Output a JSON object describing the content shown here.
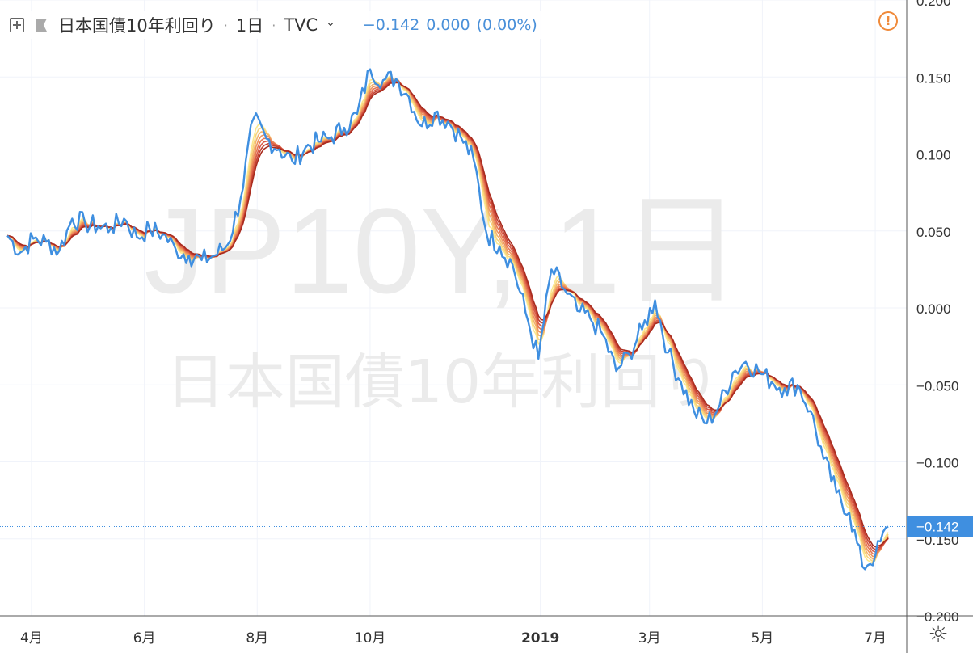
{
  "header": {
    "symbol_name": "日本国債10年利回り",
    "interval": "1日",
    "source": "TVC",
    "last": "−0.142",
    "change": "0.000",
    "change_pct": "(0.00%)"
  },
  "watermark": {
    "line1": "JP10Y, 1日",
    "line2": "日本国債10年利回り"
  },
  "icons": {
    "add": "plus-square-icon",
    "flag": "flag-icon",
    "source_menu": "chevron-down-icon",
    "alert": "alert-circle-icon",
    "settings": "gear-icon"
  },
  "colors": {
    "price_line": "#3f8fe0",
    "last_price_badge": "#3f8fe0",
    "alert": "#f08a3a",
    "ribbon": [
      "#fbe88d",
      "#f8d37b",
      "#f3b36b",
      "#ee945d",
      "#e67752",
      "#d95a45",
      "#c44131",
      "#a92c1f"
    ]
  },
  "chart_data": {
    "type": "line",
    "title": "日本国債10年利回り",
    "ylim": [
      -0.2,
      0.2
    ],
    "y_ticks": [
      "0.200",
      "0.150",
      "0.100",
      "0.050",
      "0.000",
      "−0.050",
      "−0.100",
      "−0.150",
      "−0.200"
    ],
    "x_ticks": [
      "4月",
      "6月",
      "8月",
      "10月",
      "2019",
      "3月",
      "5月",
      "7月"
    ],
    "last_price_label": "−0.142",
    "price_points": [
      [
        "2018-03-19",
        0.047
      ],
      [
        "2018-03-26",
        0.036
      ],
      [
        "2018-04-02",
        0.045
      ],
      [
        "2018-04-09",
        0.043
      ],
      [
        "2018-04-16",
        0.037
      ],
      [
        "2018-04-23",
        0.058
      ],
      [
        "2018-04-30",
        0.055
      ],
      [
        "2018-05-07",
        0.053
      ],
      [
        "2018-05-14",
        0.052
      ],
      [
        "2018-05-21",
        0.058
      ],
      [
        "2018-05-28",
        0.046
      ],
      [
        "2018-06-04",
        0.051
      ],
      [
        "2018-06-11",
        0.048
      ],
      [
        "2018-06-18",
        0.038
      ],
      [
        "2018-06-25",
        0.034
      ],
      [
        "2018-07-02",
        0.031
      ],
      [
        "2018-07-09",
        0.034
      ],
      [
        "2018-07-16",
        0.041
      ],
      [
        "2018-07-23",
        0.071
      ],
      [
        "2018-07-30",
        0.123
      ],
      [
        "2018-08-06",
        0.11
      ],
      [
        "2018-08-13",
        0.103
      ],
      [
        "2018-08-20",
        0.095
      ],
      [
        "2018-08-27",
        0.104
      ],
      [
        "2018-09-03",
        0.108
      ],
      [
        "2018-09-10",
        0.111
      ],
      [
        "2018-09-17",
        0.117
      ],
      [
        "2018-09-24",
        0.126
      ],
      [
        "2018-10-01",
        0.155
      ],
      [
        "2018-10-08",
        0.148
      ],
      [
        "2018-10-15",
        0.149
      ],
      [
        "2018-10-22",
        0.137
      ],
      [
        "2018-10-29",
        0.118
      ],
      [
        "2018-11-05",
        0.127
      ],
      [
        "2018-11-12",
        0.121
      ],
      [
        "2018-11-19",
        0.111
      ],
      [
        "2018-11-26",
        0.096
      ],
      [
        "2018-12-03",
        0.048
      ],
      [
        "2018-12-10",
        0.04
      ],
      [
        "2018-12-17",
        0.028
      ],
      [
        "2018-12-24",
        -0.003
      ],
      [
        "2018-12-31",
        -0.033
      ],
      [
        "2019-01-07",
        0.025
      ],
      [
        "2019-01-14",
        0.012
      ],
      [
        "2019-01-21",
        -0.002
      ],
      [
        "2019-01-28",
        -0.007
      ],
      [
        "2019-02-04",
        -0.018
      ],
      [
        "2019-02-11",
        -0.041
      ],
      [
        "2019-02-18",
        -0.03
      ],
      [
        "2019-02-25",
        -0.014
      ],
      [
        "2019-03-04",
        0.005
      ],
      [
        "2019-03-11",
        -0.029
      ],
      [
        "2019-03-18",
        -0.048
      ],
      [
        "2019-03-25",
        -0.067
      ],
      [
        "2019-04-01",
        -0.075
      ],
      [
        "2019-04-08",
        -0.063
      ],
      [
        "2019-04-15",
        -0.042
      ],
      [
        "2019-04-22",
        -0.035
      ],
      [
        "2019-04-29",
        -0.041
      ],
      [
        "2019-05-06",
        -0.048
      ],
      [
        "2019-05-13",
        -0.052
      ],
      [
        "2019-05-20",
        -0.05
      ],
      [
        "2019-05-27",
        -0.067
      ],
      [
        "2019-06-03",
        -0.098
      ],
      [
        "2019-06-10",
        -0.12
      ],
      [
        "2019-06-17",
        -0.133
      ],
      [
        "2019-06-24",
        -0.168
      ],
      [
        "2019-07-01",
        -0.161
      ],
      [
        "2019-07-08",
        -0.142
      ]
    ],
    "x_range": [
      "2018-03-15",
      "2019-07-18"
    ]
  }
}
